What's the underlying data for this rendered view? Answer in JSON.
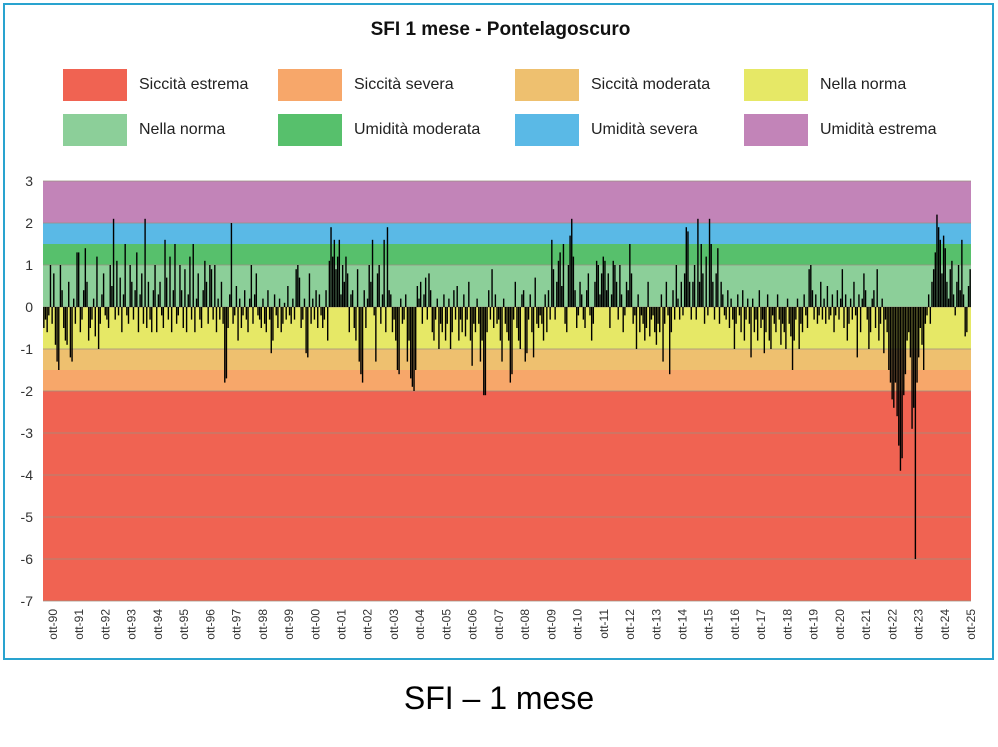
{
  "chart_data": {
    "type": "bar",
    "title": "SFI 1 mese - Pontelagoscuro",
    "ylim": [
      -7,
      3
    ],
    "y_ticks": [
      "3",
      "2",
      "1",
      "0",
      "-1",
      "-2",
      "-3",
      "-4",
      "-5",
      "-6",
      "-7"
    ],
    "x_ticks": [
      "ott-90",
      "ott-91",
      "ott-92",
      "ott-93",
      "ott-94",
      "ott-95",
      "ott-96",
      "ott-97",
      "ott-98",
      "ott-99",
      "ott-00",
      "ott-01",
      "ott-02",
      "ott-03",
      "ott-04",
      "ott-05",
      "ott-06",
      "ott-07",
      "ott-08",
      "ott-09",
      "ott-10",
      "ott-11",
      "ott-12",
      "ott-13",
      "ott-14",
      "ott-15",
      "ott-16",
      "ott-17",
      "ott-18",
      "ott-19",
      "ott-20",
      "ott-21",
      "ott-22",
      "ott-23",
      "ott-24",
      "ott-25"
    ],
    "bands": [
      {
        "label": "Siccità estrema",
        "from": -7,
        "to": -2,
        "color": "#f06352"
      },
      {
        "label": "Siccità severa",
        "from": -2,
        "to": -1.5,
        "color": "#f7a76a"
      },
      {
        "label": "Siccità moderata",
        "from": -1.5,
        "to": -1,
        "color": "#eec06f"
      },
      {
        "label": "Nella norma",
        "from": -1,
        "to": 0,
        "color": "#e6e866"
      },
      {
        "label": "Nella norma",
        "from": 0,
        "to": 1,
        "color": "#8ccf99"
      },
      {
        "label": "Umidità moderata",
        "from": 1,
        "to": 1.5,
        "color": "#57c06c"
      },
      {
        "label": "Umidità severa",
        "from": 1.5,
        "to": 2,
        "color": "#5ab9e6"
      },
      {
        "label": "Umidità estrema",
        "from": 2,
        "to": 3,
        "color": "#c284b8"
      }
    ],
    "series": [
      {
        "x_start": "ott-90",
        "step": "1 month",
        "values": [
          -0.5,
          -0.3,
          -0.6,
          -0.2,
          1.0,
          -0.4,
          0.8,
          -0.9,
          -1.3,
          -1.5,
          1.0,
          0.4,
          -0.5,
          -0.8,
          -0.9,
          0.6,
          -1.2,
          -1.3,
          0.2,
          -0.4,
          1.3,
          1.3,
          -0.6,
          -0.3,
          0.4,
          1.4,
          0.6,
          -0.8,
          -0.5,
          -0.3,
          0.2,
          -0.7,
          1.2,
          -1.0,
          -0.4,
          0.3,
          0.8,
          -0.2,
          -0.3,
          -0.5,
          1.0,
          0.5,
          2.1,
          -0.3,
          1.1,
          -0.2,
          0.7,
          -0.6,
          0.3,
          1.5,
          -0.2,
          -0.4,
          1.0,
          0.6,
          -0.3,
          0.4,
          1.3,
          -0.6,
          0.3,
          0.8,
          -0.4,
          2.1,
          -0.5,
          0.6,
          -0.3,
          -0.6,
          0.4,
          1.0,
          -0.6,
          0.3,
          0.6,
          -0.2,
          -0.5,
          1.6,
          0.7,
          -0.3,
          1.2,
          -0.6,
          0.4,
          1.5,
          -0.4,
          -0.2,
          1.0,
          0.4,
          -0.5,
          0.9,
          -0.6,
          0.3,
          1.2,
          -0.3,
          1.5,
          -0.6,
          0.2,
          0.8,
          -0.3,
          -0.5,
          0.4,
          1.1,
          0.6,
          -0.4,
          1.0,
          0.9,
          -0.3,
          1.0,
          -0.6,
          0.2,
          -0.3,
          0.6,
          -0.4,
          -1.8,
          -1.7,
          -0.5,
          0.3,
          2.0,
          -0.4,
          -0.2,
          0.5,
          -0.8,
          0.2,
          -0.5,
          -0.2,
          0.4,
          -0.3,
          -0.6,
          0.2,
          1.0,
          -0.4,
          0.3,
          0.8,
          -0.2,
          -0.3,
          -0.5,
          0.2,
          -0.4,
          -0.6,
          0.4,
          -0.3,
          -1.1,
          -0.8,
          0.3,
          -0.2,
          -0.5,
          0.2,
          -0.6,
          -0.4,
          0.1,
          -0.3,
          0.5,
          -0.2,
          -0.4,
          0.2,
          -0.3,
          0.9,
          1.0,
          0.7,
          -0.5,
          -0.3,
          0.2,
          -1.1,
          -1.2,
          0.8,
          -0.4,
          0.2,
          -0.3,
          0.4,
          -0.5,
          0.3,
          -0.2,
          -0.5,
          -0.3,
          0.4,
          -0.8,
          1.1,
          1.9,
          1.2,
          1.6,
          0.9,
          1.2,
          1.6,
          0.3,
          1.0,
          0.6,
          1.2,
          0.8,
          -0.6,
          0.3,
          0.4,
          -0.5,
          -0.8,
          0.9,
          -1.3,
          -1.6,
          -1.8,
          0.4,
          -0.5,
          0.2,
          1.0,
          0.6,
          1.6,
          -0.2,
          -1.3,
          0.8,
          1.0,
          -0.4,
          0.3,
          1.6,
          -0.6,
          1.9,
          0.4,
          0.3,
          -0.6,
          -0.3,
          -0.8,
          -1.5,
          -1.6,
          0.2,
          -0.4,
          -0.3,
          0.3,
          -1.3,
          -0.8,
          -1.7,
          -1.9,
          -2.0,
          -1.5,
          0.5,
          0.2,
          0.6,
          -0.4,
          0.3,
          0.7,
          -0.3,
          0.8,
          0.4,
          -0.6,
          -0.8,
          -0.3,
          0.2,
          -1.0,
          -0.4,
          -0.6,
          0.3,
          -0.8,
          -0.4,
          0.2,
          -1.0,
          -0.6,
          0.4,
          -0.3,
          0.5,
          -0.8,
          -0.3,
          -0.6,
          0.3,
          -0.7,
          -0.3,
          0.6,
          -0.8,
          -1.4,
          -0.4,
          -0.6,
          0.2,
          -0.4,
          -1.3,
          -0.8,
          -2.1,
          -2.1,
          -0.6,
          0.4,
          -0.3,
          0.9,
          -0.5,
          0.3,
          -0.4,
          -0.3,
          -0.8,
          -1.3,
          0.2,
          -0.4,
          -0.6,
          -0.8,
          -1.8,
          -1.6,
          -0.3,
          0.6,
          -0.5,
          -0.8,
          -1.0,
          0.3,
          0.4,
          -1.3,
          -1.1,
          -0.3,
          0.3,
          -0.6,
          -1.2,
          0.7,
          -0.4,
          -0.5,
          -0.2,
          -0.4,
          -0.8,
          0.3,
          -0.6,
          0.4,
          -0.3,
          1.6,
          0.9,
          -0.3,
          0.6,
          1.1,
          1.3,
          0.5,
          1.5,
          -0.4,
          -0.6,
          1.0,
          1.7,
          2.1,
          1.2,
          0.4,
          -0.5,
          -0.2,
          0.6,
          0.3,
          -0.3,
          -0.5,
          0.4,
          0.8,
          -0.2,
          -0.8,
          -0.4,
          0.6,
          1.1,
          1.0,
          0.3,
          0.8,
          1.2,
          1.1,
          0.4,
          0.8,
          -0.5,
          0.3,
          1.1,
          1.0,
          0.6,
          -0.3,
          1.0,
          0.3,
          -0.6,
          -0.2,
          0.6,
          0.4,
          1.5,
          0.8,
          -0.4,
          -0.2,
          -1.0,
          0.3,
          -0.6,
          -0.2,
          -0.4,
          -0.8,
          -0.5,
          0.6,
          -0.7,
          -0.3,
          -0.2,
          -0.6,
          -0.9,
          -0.4,
          -0.6,
          0.3,
          -1.3,
          -0.4,
          0.6,
          -0.2,
          -1.6,
          -0.6,
          0.4,
          -0.3,
          1.0,
          0.2,
          -0.3,
          0.6,
          -0.2,
          0.8,
          1.9,
          1.8,
          0.6,
          -0.3,
          0.6,
          1.0,
          -0.3,
          2.1,
          0.6,
          1.5,
          0.8,
          -0.4,
          1.2,
          -0.2,
          2.1,
          1.5,
          0.6,
          -0.3,
          0.8,
          1.4,
          -0.4,
          0.6,
          0.3,
          -0.2,
          -0.3,
          0.4,
          -0.5,
          0.2,
          -0.3,
          -1.0,
          -0.4,
          0.3,
          -0.2,
          -0.6,
          0.4,
          -0.8,
          -0.3,
          0.2,
          -0.4,
          -1.2,
          0.2,
          -0.6,
          -0.3,
          -0.8,
          0.4,
          -0.5,
          -0.3,
          -1.1,
          -0.6,
          0.3,
          -0.8,
          -1.0,
          -0.2,
          -0.4,
          -0.6,
          0.3,
          -0.3,
          -0.9,
          -0.4,
          -0.6,
          -1.0,
          0.2,
          -0.4,
          -0.7,
          -1.5,
          -0.8,
          -0.3,
          0.2,
          -1.0,
          -0.4,
          -0.6,
          0.3,
          -0.2,
          -0.5,
          0.9,
          1.0,
          0.4,
          -0.3,
          0.3,
          -0.4,
          -0.2,
          0.6,
          -0.3,
          0.2,
          -0.4,
          0.5,
          -0.3,
          -0.2,
          0.3,
          -0.6,
          -0.2,
          0.4,
          -0.3,
          0.2,
          0.9,
          -0.5,
          0.3,
          -0.8,
          -0.4,
          0.2,
          -0.3,
          0.6,
          -0.2,
          -1.2,
          0.3,
          -0.6,
          0.2,
          0.8,
          0.4,
          -0.3,
          -1.0,
          -0.6,
          0.2,
          0.4,
          -0.5,
          0.9,
          -0.8,
          -0.4,
          0.2,
          -1.1,
          -0.3,
          -0.6,
          -1.5,
          -1.8,
          -2.2,
          -2.4,
          -1.8,
          -2.6,
          -3.3,
          -3.9,
          -3.6,
          -2.1,
          -1.6,
          -0.8,
          -0.6,
          -1.2,
          -2.9,
          -2.4,
          -6.0,
          -1.8,
          -1.2,
          -0.5,
          -0.9,
          -1.5,
          -0.4,
          -0.2,
          0.3,
          -0.4,
          0.6,
          0.9,
          1.3,
          2.2,
          1.9,
          1.6,
          0.8,
          1.7,
          1.4,
          0.6,
          0.2,
          0.9,
          1.1,
          0.3,
          -0.2,
          0.6,
          1.0,
          0.4,
          1.6,
          0.3,
          -0.7,
          -0.6,
          0.5,
          0.9
        ]
      }
    ]
  },
  "legend": [
    {
      "label": "Siccità estrema",
      "color": "#f06352"
    },
    {
      "label": "Siccità severa",
      "color": "#f7a76a"
    },
    {
      "label": "Siccità moderata",
      "color": "#eec06f"
    },
    {
      "label": "Nella norma",
      "color": "#e6e866"
    },
    {
      "label": "Nella norma",
      "color": "#8ccf99"
    },
    {
      "label": "Umidità moderata",
      "color": "#57c06c"
    },
    {
      "label": "Umidità severa",
      "color": "#5ab9e6"
    },
    {
      "label": "Umidità estrema",
      "color": "#c284b8"
    }
  ],
  "caption": "SFI – 1 mese",
  "colors": {
    "frame_border": "#29a3cf",
    "bar": "#000000",
    "grid": "#9a8f80"
  }
}
